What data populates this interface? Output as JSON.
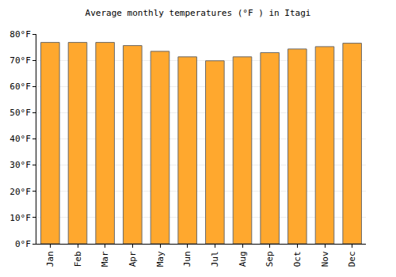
{
  "chart_data": {
    "type": "bar",
    "title": "Average monthly temperatures (°F ) in Itagi",
    "categories": [
      "Jan",
      "Feb",
      "Mar",
      "Apr",
      "May",
      "Jun",
      "Jul",
      "Aug",
      "Sep",
      "Oct",
      "Nov",
      "Dec"
    ],
    "values": [
      76.8,
      76.8,
      76.8,
      75.6,
      73.4,
      71.3,
      69.8,
      71.3,
      72.9,
      74.3,
      75.2,
      76.5
    ],
    "color": "#ffa82e",
    "ylim": [
      0,
      80
    ],
    "yticks": [
      {
        "value": 0,
        "label": "0°F"
      },
      {
        "value": 10,
        "label": "10°F"
      },
      {
        "value": 20,
        "label": "20°F"
      },
      {
        "value": 30,
        "label": "30°F"
      },
      {
        "value": 40,
        "label": "40°F"
      },
      {
        "value": 50,
        "label": "50°F"
      },
      {
        "value": 60,
        "label": "60°F"
      },
      {
        "value": 70,
        "label": "70°F"
      },
      {
        "value": 80,
        "label": "80°F"
      }
    ],
    "grid": true
  }
}
